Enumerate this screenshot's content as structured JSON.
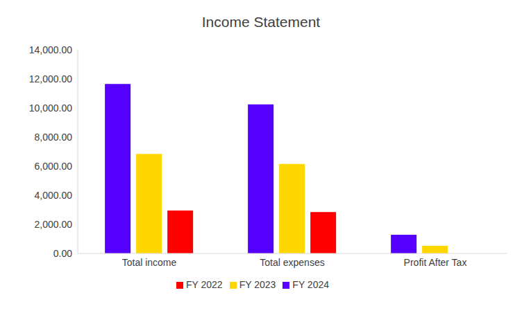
{
  "chart_data": {
    "type": "bar",
    "title": "Income Statement",
    "categories": [
      "Total income",
      "Total expenses",
      "Profit After Tax"
    ],
    "series": [
      {
        "name": "FY 2024",
        "color": "#5500ff",
        "values": [
          11650,
          10250,
          1280
        ]
      },
      {
        "name": "FY 2023",
        "color": "#ffd700",
        "values": [
          6850,
          6150,
          520
        ]
      },
      {
        "name": "FY 2022",
        "color": "#ff0000",
        "values": [
          2950,
          2850,
          0
        ]
      }
    ],
    "ylim": [
      0,
      14000
    ],
    "yticks": [
      {
        "value": 0,
        "label": "0.00"
      },
      {
        "value": 2000,
        "label": "2,000.00"
      },
      {
        "value": 4000,
        "label": "4,000.00"
      },
      {
        "value": 6000,
        "label": "6,000.00"
      },
      {
        "value": 8000,
        "label": "8,000.00"
      },
      {
        "value": 10000,
        "label": "10,000.00"
      },
      {
        "value": 12000,
        "label": "12,000.00"
      },
      {
        "value": 14000,
        "label": "14,000.00"
      }
    ],
    "grid": false,
    "legend": "bottom"
  }
}
